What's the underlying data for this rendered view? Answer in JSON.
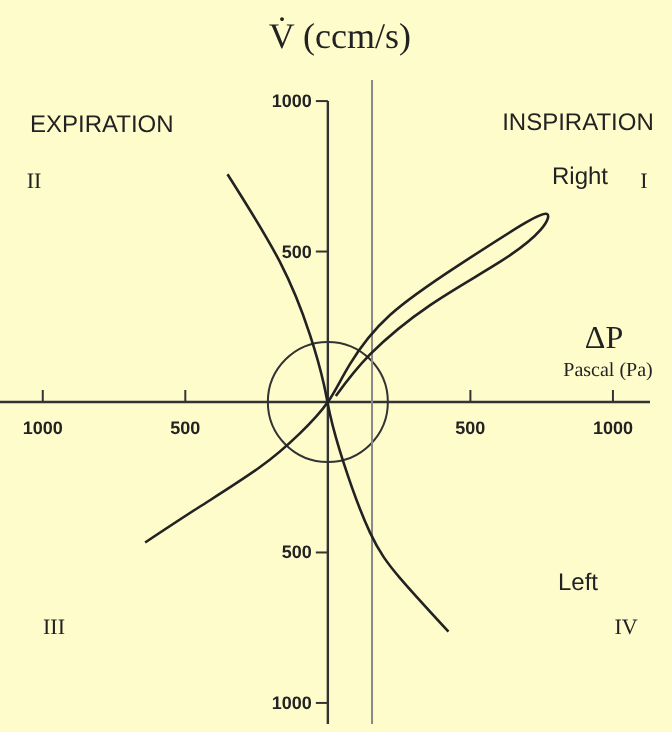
{
  "chart_data": {
    "type": "line",
    "xlabel": "ΔP",
    "ylabel": "V̇ (ccm/s)",
    "annotations": [
      "EXPIRATION",
      "INSPIRATION",
      "II",
      "I",
      "III",
      "IV",
      "Pascal (Pa)"
    ],
    "xlim": [
      -1150,
      1130
    ],
    "ylim": [
      -1070,
      1070
    ],
    "xticks": [
      {
        "value": -1000,
        "label": "1000"
      },
      {
        "value": -500,
        "label": "500"
      },
      500,
      1000
    ],
    "yticks": [
      {
        "value": -1000,
        "label": "1000"
      },
      {
        "value": -500,
        "label": "500"
      },
      500,
      1000
    ],
    "marker": "none",
    "line_style": "solid",
    "ref_lines": [
      {
        "axis": "x",
        "value": 155,
        "color": "#888888"
      }
    ],
    "series": [
      {
        "name": "Right",
        "color": "#222222",
        "x": [
          -641,
          -451,
          -239,
          -99,
          0,
          77,
          218,
          458,
          676,
          768,
          746,
          606,
          359,
          148,
          28
        ],
        "values": [
          -467,
          -349,
          -217,
          -105,
          0,
          125,
          289,
          454,
          586,
          625,
          572,
          467,
          322,
          158,
          20
        ]
      },
      {
        "name": "Left",
        "color": "#222222",
        "x": [
          -352,
          -169,
          -63,
          -14,
          7,
          56,
          148,
          254,
          423
        ],
        "values": [
          757,
          467,
          224,
          59,
          -39,
          -204,
          -434,
          -586,
          -763
        ]
      }
    ]
  }
}
